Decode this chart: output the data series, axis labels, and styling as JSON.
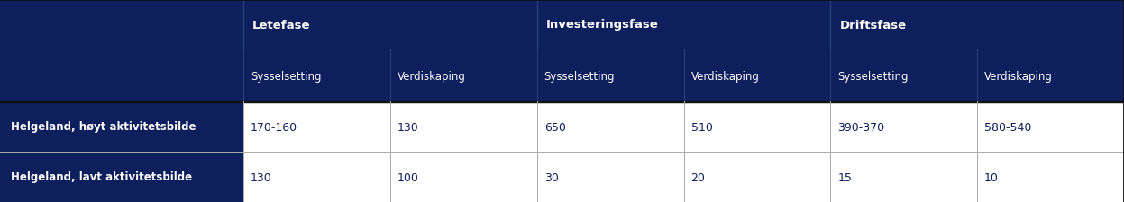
{
  "header_bg": "#0d1f5c",
  "data_row_bg": "#ffffff",
  "header_text_color": "#ffffff",
  "data_text_color": "#0d1f5c",
  "thick_sep_color": "#111111",
  "thin_sep_color": "#aaaaaa",
  "phase_headers": [
    "Letefase",
    "Investeringsfase",
    "Driftsfase"
  ],
  "sub_headers": [
    "Sysselsetting",
    "Verdiskaping",
    "Sysselsetting",
    "Verdiskaping",
    "Sysselsetting",
    "Verdiskaping"
  ],
  "row_labels": [
    "Helgeland, høyt aktivitetsbilde",
    "Helgeland, lavt aktivitetsbilde"
  ],
  "data": [
    [
      "170-160",
      "130",
      "650",
      "510",
      "390-370",
      "580-540"
    ],
    [
      "130",
      "100",
      "30",
      "20",
      "15",
      "10"
    ]
  ],
  "figsize": [
    12.47,
    2.26
  ],
  "dpi": 100
}
